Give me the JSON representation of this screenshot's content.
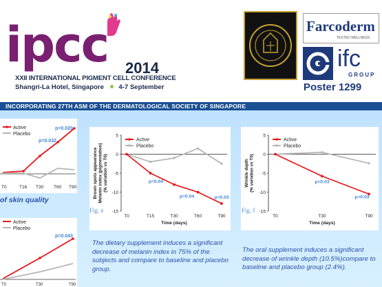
{
  "header": {
    "logo_text": "ipcc",
    "year": "2014",
    "conference_title": "XXII INTERNATIONAL PIGMENT CELL CONFERENCE",
    "venue": "Shangri-La Hotel, Singapore",
    "dates": "4-7 September",
    "farcoderm": "Farcoderm",
    "farcoderm_tagline": "TESTED WELLNESS",
    "ifc": "ifc",
    "ifc_group": "GROUP",
    "poster": "Poster 1299"
  },
  "banner": {
    "text": "INCORPORATING 27TH ASM OF THE DERMATOLOGICAL SOCIETY OF SINGAPORE"
  },
  "left_partial": {
    "legend": [
      "Active",
      "Placebo"
    ],
    "top_x_labels": [
      "T0",
      "T16",
      "T30",
      "T60",
      "T90"
    ],
    "top_pvalues": [
      "p=0.032",
      "p=0.020"
    ],
    "top_caption": "of skin quality",
    "bottom_x_labels": [
      "T0",
      "T30",
      "T90"
    ],
    "bottom_pvalue": "p=0.043"
  },
  "fig_e_label": "Fig. e",
  "fig_f_label": "Fig. f",
  "chart_data": [
    {
      "type": "line",
      "title": "",
      "ylabel": "Brown spots appearance\nMelanin index (pigmentation)\n(% variation vs T0)",
      "xlabel": "Time (days)",
      "categories": [
        "T0",
        "T15",
        "T30",
        "T60",
        "T90"
      ],
      "ylim": [
        -15,
        5
      ],
      "yticks": [
        "5",
        "0",
        "-5",
        "-10",
        "-15"
      ],
      "series": [
        {
          "name": "Active",
          "color": "#e8161b",
          "values": [
            0,
            -5,
            -8,
            -10,
            -13
          ]
        },
        {
          "name": "Placebo",
          "color": "#b5b5b5",
          "values": [
            0,
            -2,
            -1,
            1.5,
            -2.5
          ]
        }
      ],
      "annotations": [
        "p=0.04",
        "p=0.04",
        "p=0.03"
      ],
      "legend_position": "top-left"
    },
    {
      "type": "line",
      "title": "",
      "ylabel": "Wrinkle depth\n(% variation vs T0)",
      "xlabel": "Time (days)",
      "categories": [
        "T0",
        "T30",
        "T90"
      ],
      "ylim": [
        -15,
        5
      ],
      "yticks": [
        "5",
        "0",
        "-5",
        "-10",
        "-15"
      ],
      "series": [
        {
          "name": "Active",
          "color": "#e8161b",
          "values": [
            0,
            -5.8,
            -10.5
          ]
        },
        {
          "name": "Placebo",
          "color": "#b5b5b5",
          "values": [
            0,
            0.5,
            -2.4
          ]
        }
      ],
      "annotations": [
        "p=0.03",
        "p=0.03"
      ],
      "legend_position": "top-left"
    }
  ],
  "captions": {
    "fig_e": "The dietary supplement induces a significant decrease of melanin index in 75% of the subjects and compare to baseline and placebo group.",
    "fig_f": "The oral supplement induces a significant decrease of wrinkle depth (10.5%)compare to baseline and placebo group (2.4%)."
  }
}
